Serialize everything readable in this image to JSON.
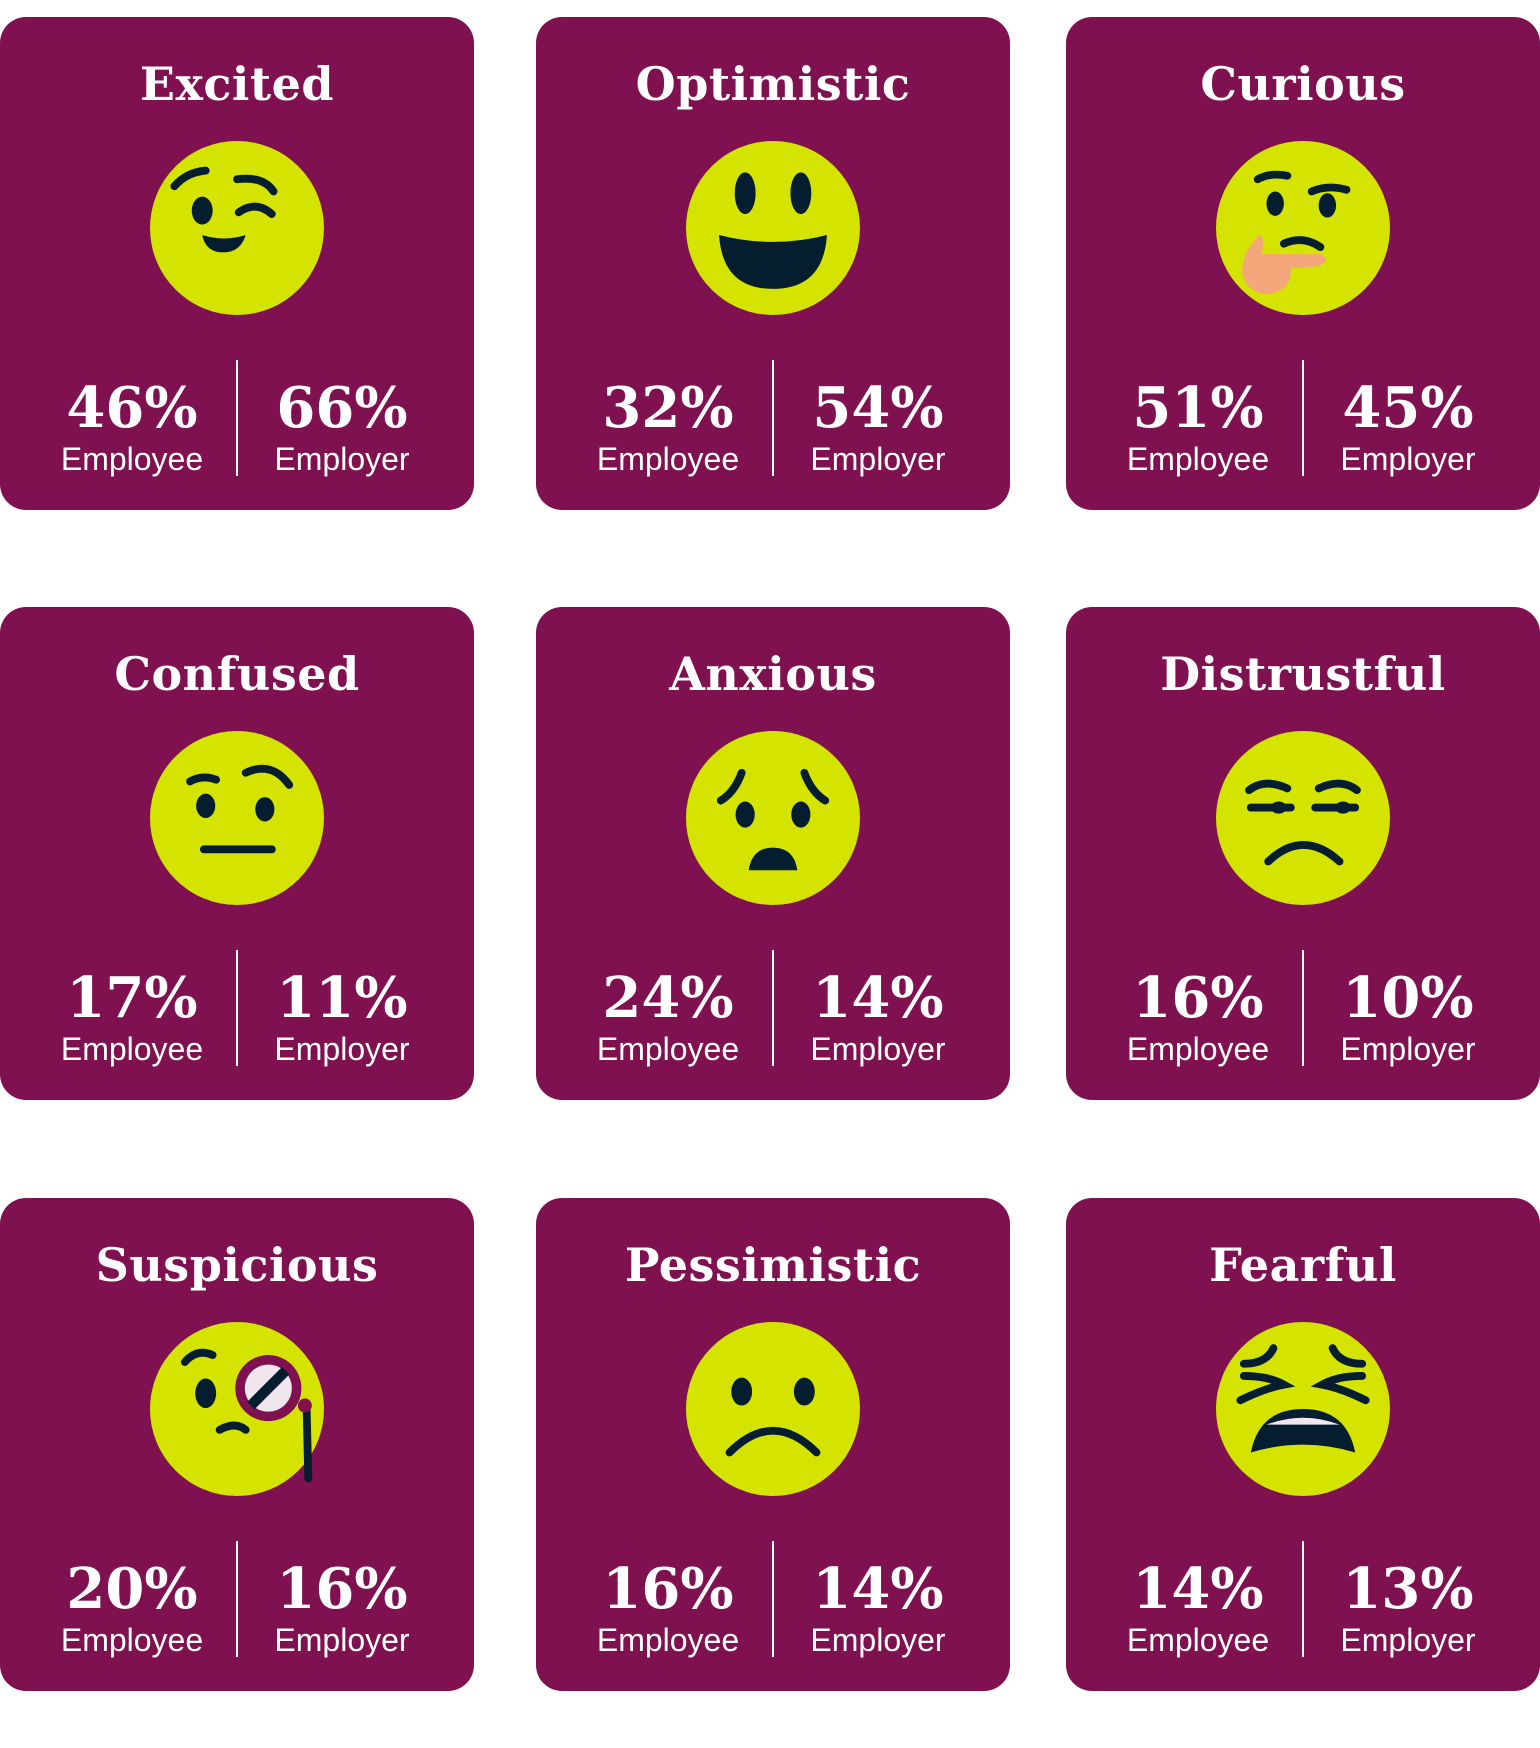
{
  "colors": {
    "card": "#7F1150",
    "face": "#D4E300",
    "feature": "#041E30",
    "hand": "#F4A77A"
  },
  "labels": {
    "employee": "Employee",
    "employer": "Employer"
  },
  "cards": [
    {
      "title": "Excited",
      "icon": "winking-face-icon",
      "employee": "46%",
      "employer": "66%"
    },
    {
      "title": "Optimistic",
      "icon": "grinning-face-icon",
      "employee": "32%",
      "employer": "54%"
    },
    {
      "title": "Curious",
      "icon": "thinking-face-icon",
      "employee": "51%",
      "employer": "45%"
    },
    {
      "title": "Confused",
      "icon": "raised-eyebrow-face-icon",
      "employee": "17%",
      "employer": "11%"
    },
    {
      "title": "Anxious",
      "icon": "worried-face-icon",
      "employee": "24%",
      "employer": "14%"
    },
    {
      "title": "Distrustful",
      "icon": "unamused-face-icon",
      "employee": "16%",
      "employer": "10%"
    },
    {
      "title": "Suspicious",
      "icon": "monocle-face-icon",
      "employee": "20%",
      "employer": "16%"
    },
    {
      "title": "Pessimistic",
      "icon": "frowning-face-icon",
      "employee": "16%",
      "employer": "14%"
    },
    {
      "title": "Fearful",
      "icon": "tired-face-icon",
      "employee": "14%",
      "employer": "13%"
    }
  ]
}
